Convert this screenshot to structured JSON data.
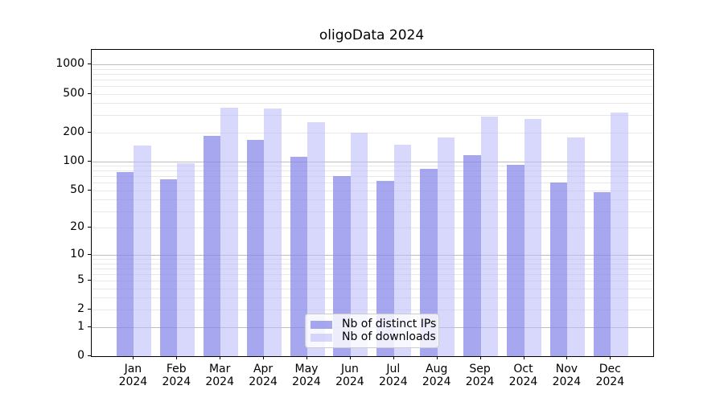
{
  "title": "oligoData 2024",
  "chart_data": {
    "type": "bar",
    "title": "oligoData 2024",
    "categories": [
      "Jan",
      "Feb",
      "Mar",
      "Apr",
      "May",
      "Jun",
      "Jul",
      "Aug",
      "Sep",
      "Oct",
      "Nov",
      "Dec"
    ],
    "category_year": "2024",
    "series": [
      {
        "name": "Nb of distinct IPs",
        "color": "rgba(133,133,233,0.72)",
        "values": [
          77,
          65,
          182,
          168,
          111,
          70,
          63,
          83,
          115,
          92,
          60,
          48
        ]
      },
      {
        "name": "Nb of downloads",
        "color": "rgba(187,187,250,0.58)",
        "values": [
          145,
          95,
          362,
          355,
          253,
          200,
          150,
          178,
          293,
          272,
          176,
          322
        ]
      }
    ],
    "y_scale": "log1p",
    "ylim": [
      0,
      1415
    ],
    "y_tick_labels": [
      "1000",
      "500",
      "200",
      "100",
      "50",
      "20",
      "10",
      "5",
      "2",
      "1",
      "0"
    ],
    "y_ticks": [
      1000,
      500,
      200,
      100,
      50,
      20,
      10,
      5,
      2,
      1,
      0
    ],
    "y_major_gridlines": [
      1,
      10,
      100,
      1000
    ],
    "y_minor_gridlines": [
      2,
      3,
      4,
      5,
      6,
      7,
      8,
      9,
      20,
      30,
      40,
      50,
      60,
      70,
      80,
      90,
      200,
      300,
      400,
      500,
      600,
      700,
      800,
      900
    ],
    "grid": true,
    "legend_position": "lower center",
    "colors": {
      "major_gridline": "#bdbdbd",
      "minor_gridline": "#e8e8e8",
      "axis": "#000000",
      "legend_border": "#cccccc"
    }
  }
}
